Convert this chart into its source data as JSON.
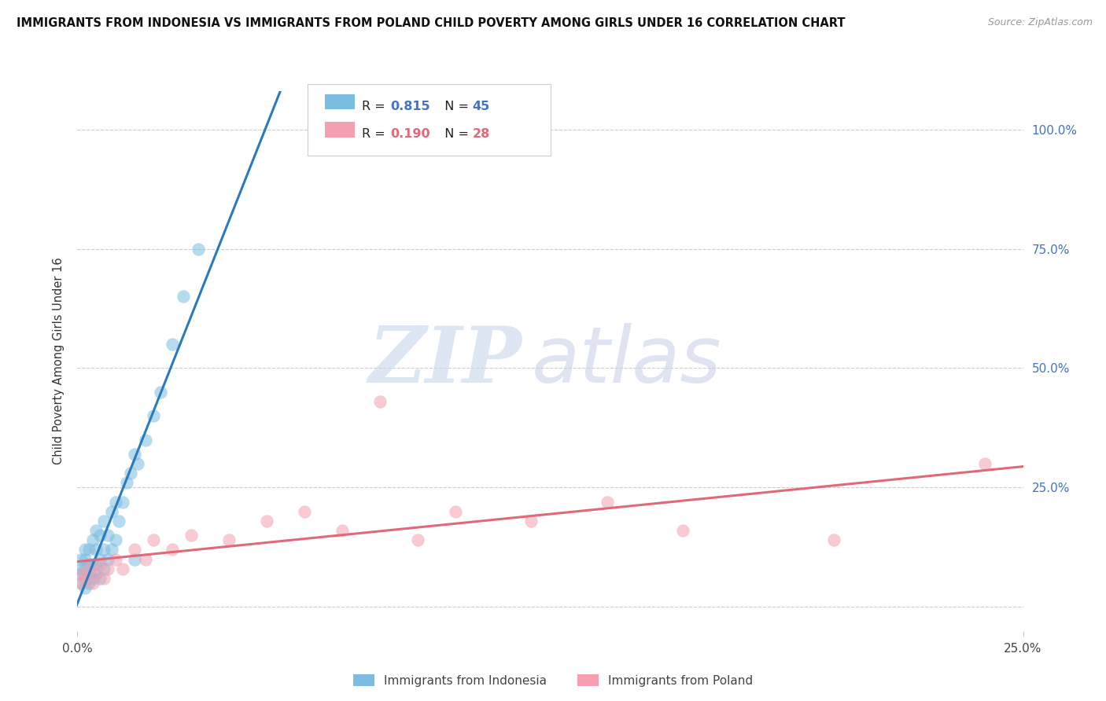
{
  "title": "IMMIGRANTS FROM INDONESIA VS IMMIGRANTS FROM POLAND CHILD POVERTY AMONG GIRLS UNDER 16 CORRELATION CHART",
  "source": "Source: ZipAtlas.com",
  "ylabel": "Child Poverty Among Girls Under 16",
  "xlim": [
    0.0,
    0.25
  ],
  "ylim": [
    -0.05,
    1.08
  ],
  "yticks": [
    0.0,
    0.25,
    0.5,
    0.75,
    1.0
  ],
  "ytick_labels": [
    "",
    "25.0%",
    "50.0%",
    "75.0%",
    "100.0%"
  ],
  "xtick_labels": [
    "0.0%",
    "25.0%"
  ],
  "indonesia_color": "#7bbde0",
  "poland_color": "#f4a0b0",
  "indonesia_line_color": "#2b7bba",
  "poland_line_color": "#e06878",
  "R_indonesia": 0.815,
  "N_indonesia": 45,
  "R_poland": 0.19,
  "N_poland": 28,
  "legend_indonesia": "Immigrants from Indonesia",
  "legend_poland": "Immigrants from Poland",
  "watermark_zip": "ZIP",
  "watermark_atlas": "atlas",
  "grid_color": "#cccccc",
  "indonesia_x": [
    0.001,
    0.001,
    0.001,
    0.001,
    0.002,
    0.002,
    0.002,
    0.002,
    0.002,
    0.003,
    0.003,
    0.003,
    0.003,
    0.004,
    0.004,
    0.004,
    0.005,
    0.005,
    0.005,
    0.005,
    0.006,
    0.006,
    0.006,
    0.007,
    0.007,
    0.007,
    0.008,
    0.008,
    0.009,
    0.009,
    0.01,
    0.01,
    0.011,
    0.012,
    0.013,
    0.014,
    0.015,
    0.015,
    0.016,
    0.018,
    0.02,
    0.022,
    0.025,
    0.028,
    0.032
  ],
  "indonesia_y": [
    0.05,
    0.07,
    0.08,
    0.1,
    0.04,
    0.06,
    0.08,
    0.1,
    0.12,
    0.05,
    0.07,
    0.09,
    0.12,
    0.06,
    0.09,
    0.14,
    0.07,
    0.09,
    0.12,
    0.16,
    0.06,
    0.1,
    0.15,
    0.08,
    0.12,
    0.18,
    0.1,
    0.15,
    0.12,
    0.2,
    0.14,
    0.22,
    0.18,
    0.22,
    0.26,
    0.28,
    0.32,
    0.1,
    0.3,
    0.35,
    0.4,
    0.45,
    0.55,
    0.65,
    0.75
  ],
  "poland_x": [
    0.001,
    0.001,
    0.002,
    0.003,
    0.004,
    0.005,
    0.006,
    0.007,
    0.008,
    0.01,
    0.012,
    0.015,
    0.018,
    0.02,
    0.025,
    0.03,
    0.04,
    0.05,
    0.06,
    0.07,
    0.08,
    0.09,
    0.1,
    0.12,
    0.14,
    0.16,
    0.2,
    0.24
  ],
  "poland_y": [
    0.05,
    0.07,
    0.06,
    0.08,
    0.05,
    0.07,
    0.09,
    0.06,
    0.08,
    0.1,
    0.08,
    0.12,
    0.1,
    0.14,
    0.12,
    0.15,
    0.14,
    0.18,
    0.2,
    0.16,
    0.43,
    0.14,
    0.2,
    0.18,
    0.22,
    0.16,
    0.14,
    0.3
  ]
}
